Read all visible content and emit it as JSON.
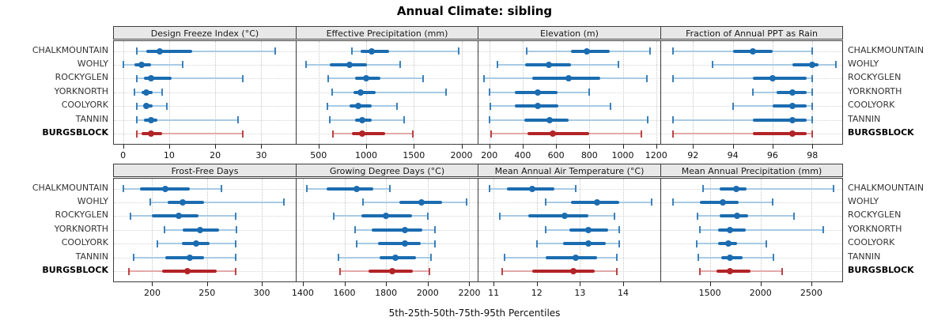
{
  "title": "Annual Climate: sibling",
  "caption": "5th-25th-50th-75th-95th Percentiles",
  "chart_data": {
    "type": "dotplot-intervals",
    "title": "Annual Climate: sibling",
    "caption": "5th-25th-50th-75th-95th Percentiles",
    "percentiles": [
      5,
      25,
      50,
      75,
      95
    ],
    "categories": [
      "CHALKMOUNTAIN",
      "WOHLY",
      "ROCKYGLEN",
      "YORKNORTH",
      "COOLYORK",
      "TANNIN",
      "BURGSBLOCK"
    ],
    "highlight_category": "BURGSBLOCK",
    "layout": {
      "grid_rows": 2,
      "grid_cols": 4,
      "legend": "none",
      "gridlines": "dotted",
      "row_labels": "both-sides"
    },
    "colors": {
      "series": "#1b6cb0",
      "series_light": "#a9cbe4",
      "highlight": "#b22427",
      "highlight_light": "#e4a9a9",
      "header_bg": "#e8e8e8",
      "panel_border": "#3c3c3c",
      "grid": "#c6c6c6"
    },
    "panels": [
      {
        "title": "Design Freeze Index (°C)",
        "row": 0,
        "col": 0,
        "xlim": [
          -2,
          37.5
        ],
        "xticks": [
          0,
          10,
          20,
          30
        ],
        "series": [
          [
            3,
            5,
            8,
            15,
            33
          ],
          [
            0,
            2.5,
            4,
            6,
            13
          ],
          [
            3,
            4.5,
            6,
            10.5,
            26
          ],
          [
            2.5,
            4,
            5,
            6.5,
            8.5
          ],
          [
            3,
            4.5,
            5,
            6.5,
            9.5
          ],
          [
            3,
            4.5,
            6,
            7.5,
            25
          ],
          [
            3,
            4,
            6,
            8.5,
            26
          ]
        ]
      },
      {
        "title": "Effective Precipitation (mm)",
        "row": 0,
        "col": 1,
        "xlim": [
          270,
          2170
        ],
        "xticks": [
          500,
          1000,
          1500,
          2000
        ],
        "series": [
          [
            850,
            945,
            1055,
            1240,
            1975
          ],
          [
            370,
            620,
            830,
            1010,
            1360
          ],
          [
            600,
            880,
            1000,
            1150,
            1600
          ],
          [
            640,
            870,
            945,
            1100,
            1840
          ],
          [
            590,
            830,
            920,
            1060,
            1320
          ],
          [
            620,
            880,
            955,
            1060,
            1400
          ],
          [
            650,
            850,
            960,
            1200,
            1490
          ]
        ]
      },
      {
        "title": "Elevation (m)",
        "row": 0,
        "col": 2,
        "xlim": [
          135,
          1225
        ],
        "xticks": [
          200,
          400,
          600,
          800,
          1000,
          1200
        ],
        "series": [
          [
            425,
            690,
            785,
            920,
            1165
          ],
          [
            250,
            415,
            555,
            690,
            975
          ],
          [
            170,
            455,
            675,
            865,
            1145
          ],
          [
            200,
            355,
            490,
            610,
            800
          ],
          [
            205,
            355,
            490,
            615,
            925
          ],
          [
            200,
            410,
            560,
            675,
            1150
          ],
          [
            210,
            430,
            580,
            800,
            1110
          ]
        ]
      },
      {
        "title": "Fraction of Annual PPT as Rain",
        "row": 0,
        "col": 3,
        "xlim": [
          90.4,
          99.5
        ],
        "xticks": [
          92,
          94,
          96,
          98
        ],
        "series": [
          [
            91,
            94,
            95,
            96,
            98
          ],
          [
            93,
            97,
            98,
            98.3,
            99.2
          ],
          [
            91,
            95,
            96,
            97.7,
            98
          ],
          [
            95,
            96.2,
            97,
            97.7,
            98
          ],
          [
            94,
            96,
            97,
            97.7,
            98
          ],
          [
            91,
            95,
            97,
            97.7,
            98
          ],
          [
            91,
            95,
            97,
            97.7,
            98
          ]
        ]
      },
      {
        "title": "Frost-Free Days",
        "row": 1,
        "col": 0,
        "xlim": [
          165,
          331
        ],
        "xticks": [
          200,
          250,
          300
        ],
        "series": [
          [
            174,
            189,
            212,
            234,
            263
          ],
          [
            198,
            214,
            228,
            247,
            320
          ],
          [
            180,
            200,
            224,
            242,
            276
          ],
          [
            211,
            228,
            244,
            261,
            277
          ],
          [
            205,
            227,
            240,
            252,
            276
          ],
          [
            183,
            212,
            234,
            247,
            276
          ],
          [
            179,
            209,
            232,
            259,
            276
          ]
        ]
      },
      {
        "title": "Growing Degree Days (°C)",
        "row": 1,
        "col": 1,
        "xlim": [
          1370,
          2240
        ],
        "xticks": [
          1400,
          1600,
          1800,
          2000,
          2200
        ],
        "series": [
          [
            1420,
            1515,
            1660,
            1740,
            1820
          ],
          [
            1690,
            1865,
            1970,
            2070,
            2185
          ],
          [
            1550,
            1680,
            1800,
            1925,
            2000
          ],
          [
            1650,
            1730,
            1890,
            1975,
            2035
          ],
          [
            1660,
            1760,
            1890,
            1965,
            2035
          ],
          [
            1570,
            1770,
            1845,
            1945,
            2015
          ],
          [
            1580,
            1715,
            1830,
            1930,
            2010
          ]
        ]
      },
      {
        "title": "Mean Annual Air Temperature (°C)",
        "row": 1,
        "col": 2,
        "xlim": [
          10.65,
          14.86
        ],
        "xticks": [
          11,
          12,
          13,
          14
        ],
        "series": [
          [
            10.9,
            11.3,
            11.9,
            12.4,
            12.9
          ],
          [
            12.2,
            12.8,
            13.4,
            13.9,
            14.65
          ],
          [
            11.15,
            11.8,
            12.65,
            13.2,
            13.8
          ],
          [
            12.2,
            12.75,
            13.2,
            13.65,
            13.9
          ],
          [
            12.0,
            12.6,
            13.2,
            13.6,
            13.9
          ],
          [
            11.25,
            12.2,
            12.9,
            13.4,
            13.85
          ],
          [
            11.2,
            11.9,
            12.85,
            13.35,
            13.85
          ]
        ]
      },
      {
        "title": "Mean Annual Precipitation (mm)",
        "row": 1,
        "col": 3,
        "xlim": [
          1020,
          2805
        ],
        "xticks": [
          1500,
          2000,
          2500
        ],
        "series": [
          [
            1430,
            1600,
            1760,
            1860,
            2720
          ],
          [
            1140,
            1405,
            1630,
            1785,
            2120
          ],
          [
            1380,
            1600,
            1770,
            1875,
            2330
          ],
          [
            1400,
            1585,
            1700,
            1855,
            2620
          ],
          [
            1370,
            1585,
            1680,
            1770,
            2055
          ],
          [
            1385,
            1610,
            1700,
            1820,
            2130
          ],
          [
            1400,
            1565,
            1700,
            1900,
            2215
          ]
        ]
      }
    ]
  }
}
